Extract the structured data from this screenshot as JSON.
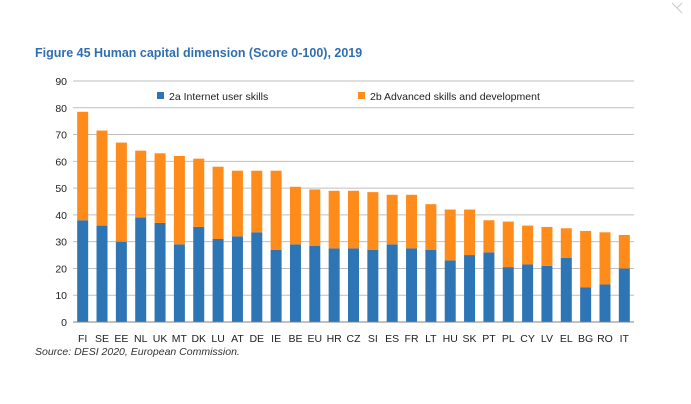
{
  "chart_data": {
    "type": "bar",
    "stacked": true,
    "title": "Figure 45 Human capital dimension (Score 0-100), 2019",
    "source": "Source: DESI 2020, European Commission.",
    "ylim": [
      0,
      90
    ],
    "yticks": [
      0,
      10,
      20,
      30,
      40,
      50,
      60,
      70,
      80,
      90
    ],
    "grid": true,
    "legend_position": "top",
    "categories": [
      "FI",
      "SE",
      "EE",
      "NL",
      "UK",
      "MT",
      "DK",
      "LU",
      "AT",
      "DE",
      "IE",
      "BE",
      "EU",
      "HR",
      "CZ",
      "SI",
      "ES",
      "FR",
      "LT",
      "HU",
      "SK",
      "PT",
      "PL",
      "CY",
      "LV",
      "EL",
      "BG",
      "RO",
      "IT"
    ],
    "series": [
      {
        "name": "2a Internet user skills",
        "color": "#2e75b6",
        "values": [
          38,
          36,
          30,
          39,
          37,
          29,
          35.5,
          31,
          32,
          33.5,
          27,
          29,
          28.5,
          27.5,
          27.5,
          27,
          29,
          27.5,
          27,
          23,
          25,
          26,
          20.5,
          21.5,
          21,
          24,
          13,
          14,
          20
        ]
      },
      {
        "name": "2b Advanced skills and development",
        "color": "#ff8c1a",
        "values": [
          40.5,
          35.5,
          37,
          25,
          26,
          33,
          25.5,
          27,
          24.5,
          23,
          29.5,
          21.5,
          21,
          21.5,
          21.5,
          21.5,
          18.5,
          20,
          17,
          19,
          17,
          12,
          17,
          14.5,
          14.5,
          11,
          21,
          19.5,
          12.5
        ]
      }
    ]
  }
}
